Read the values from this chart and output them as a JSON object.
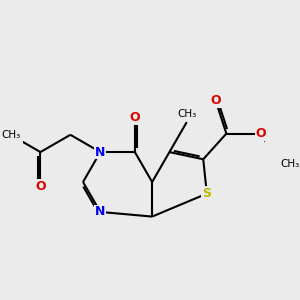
{
  "bg_color": "#ebebeb",
  "bond_color": "#000000",
  "n_color": "#0000ee",
  "s_color": "#bbbb00",
  "o_color": "#dd0000",
  "lw": 1.5,
  "dbo": 0.06,
  "bl": 1.0,
  "xlim": [
    -3.2,
    3.8
  ],
  "ylim": [
    -2.5,
    2.8
  ]
}
